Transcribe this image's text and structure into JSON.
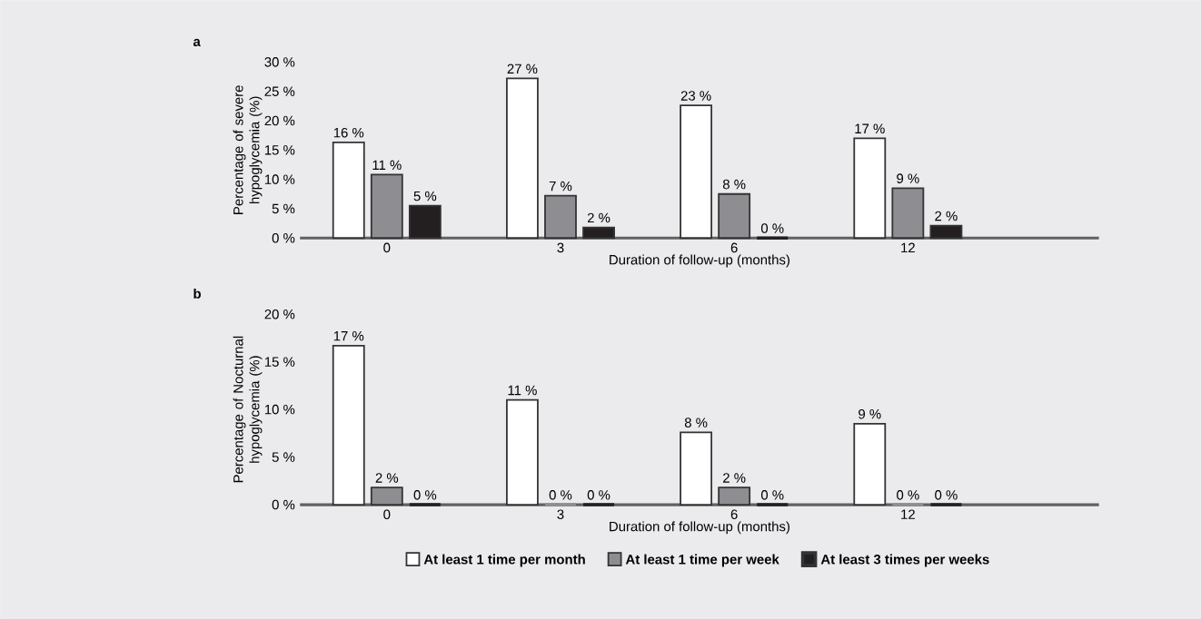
{
  "chart_data": [
    {
      "type": "bar",
      "title": "a",
      "xlabel": "Duration of follow-up (months)",
      "ylabel": "Percentage of severe hypoglycemia (%)",
      "categories": [
        "0",
        "3",
        "6",
        "12"
      ],
      "ylim": [
        0,
        30
      ],
      "yticks": [
        {
          "value": 0,
          "label": "0 %"
        },
        {
          "value": 5,
          "label": "5 %"
        },
        {
          "value": 10,
          "label": "10 %"
        },
        {
          "value": 15,
          "label": "15 %"
        },
        {
          "value": 20,
          "label": "20 %"
        },
        {
          "value": 25,
          "label": "25 %"
        },
        {
          "value": 30,
          "label": "30 %"
        }
      ],
      "legend": false,
      "series": [
        {
          "color": "#ffffff",
          "values": [
            16.3,
            27.2,
            22.6,
            17.0
          ],
          "value_labels": [
            "16 %",
            "27 %",
            "23 %",
            "17 %"
          ]
        },
        {
          "color": "#8e8e92",
          "values": [
            10.8,
            7.2,
            7.5,
            8.5
          ],
          "value_labels": [
            "11 %",
            "7 %",
            "8 %",
            "9 %"
          ]
        },
        {
          "color": "#231f20",
          "values": [
            5.5,
            1.8,
            0,
            2.1
          ],
          "value_labels": [
            "5 %",
            "2 %",
            "0 %",
            "2 %"
          ]
        }
      ]
    },
    {
      "type": "bar",
      "title": "b",
      "xlabel": "Duration of follow-up (months)",
      "ylabel": "Percentage of Nocturnal hypoglycemia (%)",
      "categories": [
        "0",
        "3",
        "6",
        "12"
      ],
      "ylim": [
        0,
        20
      ],
      "yticks": [
        {
          "value": 0,
          "label": "0 %"
        },
        {
          "value": 5,
          "label": "5 %"
        },
        {
          "value": 10,
          "label": "10 %"
        },
        {
          "value": 15,
          "label": "15 %"
        },
        {
          "value": 20,
          "label": "20 %"
        }
      ],
      "legend": "bottom",
      "series": [
        {
          "name": "At least 1 time per month",
          "color": "#ffffff",
          "values": [
            16.7,
            11.0,
            7.6,
            8.5
          ],
          "value_labels": [
            "17 %",
            "11 %",
            "8 %",
            "9 %"
          ]
        },
        {
          "name": "At least 1 time per week",
          "color": "#8e8e92",
          "values": [
            1.8,
            0,
            1.8,
            0
          ],
          "value_labels": [
            "2 %",
            "0 %",
            "2 %",
            "0 %"
          ]
        },
        {
          "name": "At least 3 times per weeks",
          "color": "#231f20",
          "values": [
            0,
            0,
            0,
            0
          ],
          "value_labels": [
            "0 %",
            "0 %",
            "0 %",
            "0 %"
          ]
        }
      ]
    }
  ]
}
